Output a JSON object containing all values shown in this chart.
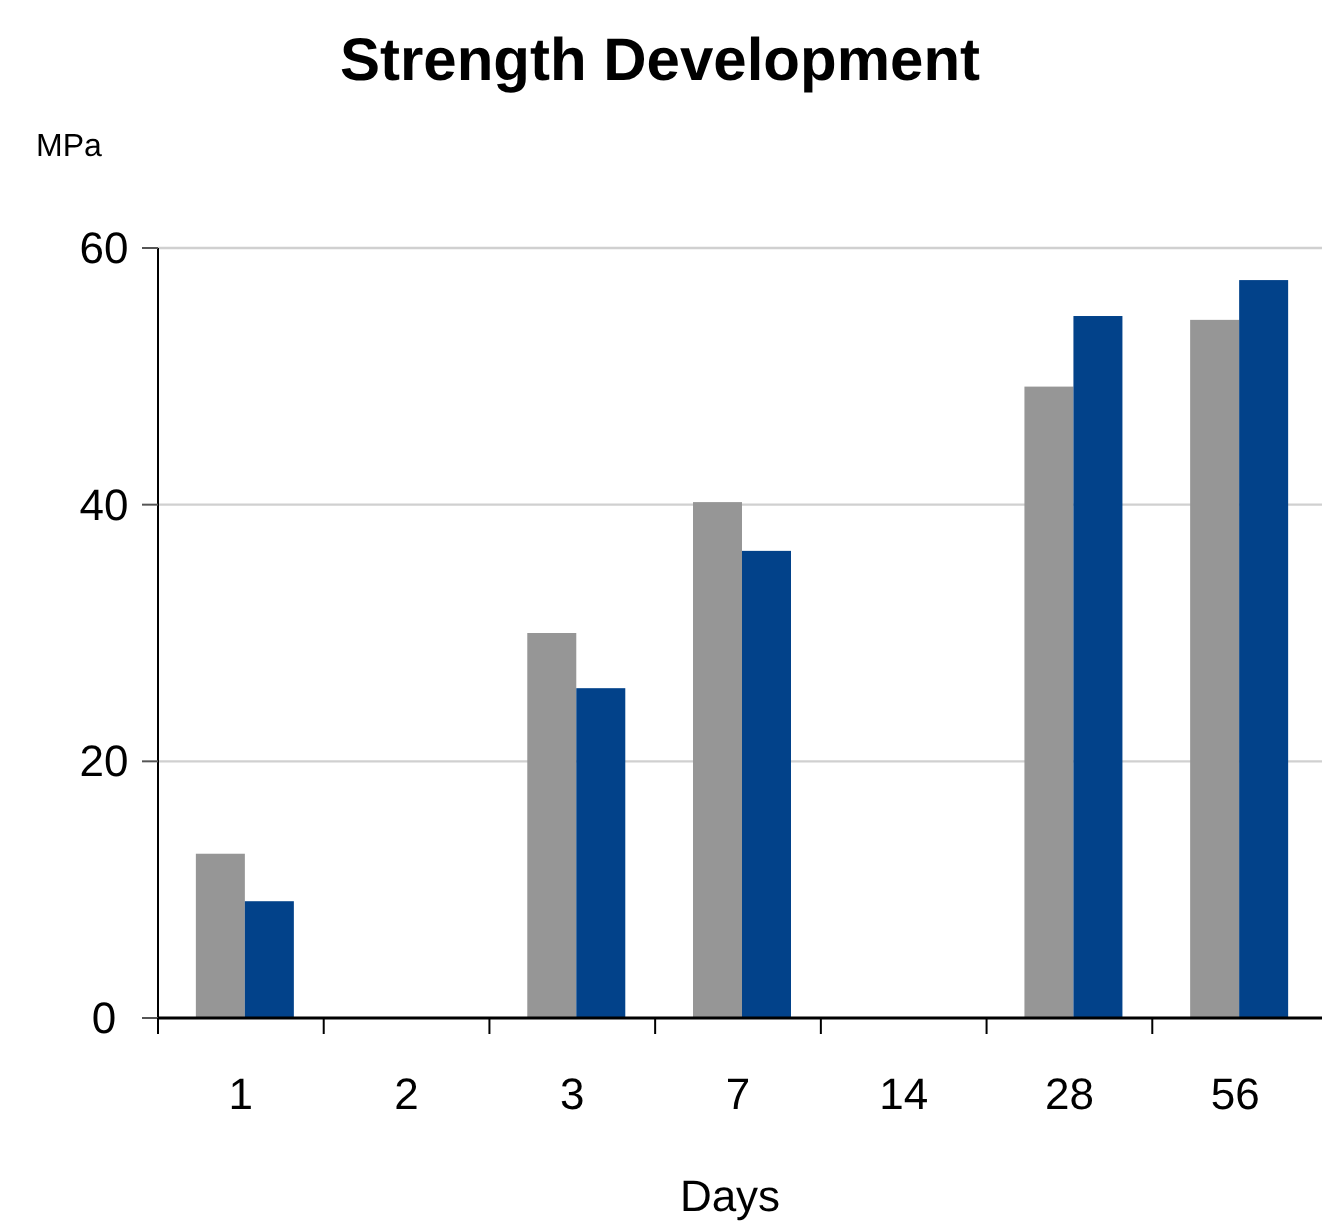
{
  "chart_data": {
    "type": "bar",
    "title": "Strength Development",
    "ylabel": "MPa",
    "xlabel": "Days",
    "categories": [
      "1",
      "2",
      "3",
      "7",
      "14",
      "28",
      "56"
    ],
    "series": [
      {
        "color": "#969696",
        "values": [
          12.8,
          null,
          30.0,
          40.2,
          null,
          49.2,
          54.4
        ]
      },
      {
        "color": "#02428a",
        "values": [
          9.1,
          null,
          25.7,
          36.4,
          null,
          54.7,
          57.5
        ]
      }
    ],
    "ylim": [
      0,
      60
    ],
    "yticks": [
      0,
      20,
      40,
      60
    ],
    "grid": "y"
  }
}
